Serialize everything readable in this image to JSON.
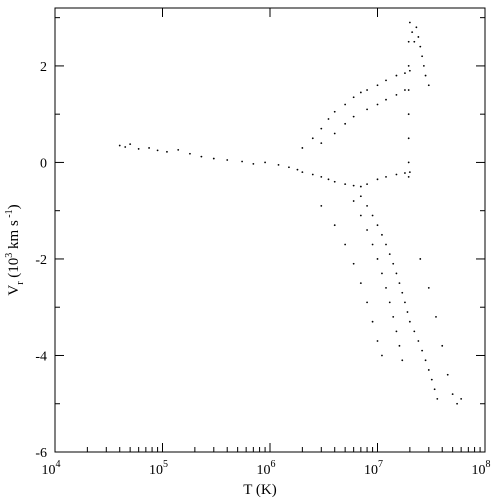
{
  "chart_data": {
    "type": "scatter",
    "title": "",
    "xlabel": "T (K)",
    "ylabel": "V_r (10^3 km s^-1)",
    "ylabel_parts": {
      "base": "V",
      "sub": "r",
      "open": "(10",
      "exp": "3",
      "unit": " km s",
      "unit_exp": "-1",
      "close": ")"
    },
    "x_scale": "log",
    "xlim": [
      10000,
      100000000
    ],
    "ylim": [
      -6,
      3.2
    ],
    "x_ticks": [
      {
        "value": 10000,
        "base": "10",
        "exp": "4"
      },
      {
        "value": 100000,
        "base": "10",
        "exp": "5"
      },
      {
        "value": 1000000,
        "base": "10",
        "exp": "6"
      },
      {
        "value": 10000000,
        "base": "10",
        "exp": "7"
      },
      {
        "value": 100000000,
        "base": "10",
        "exp": "8"
      }
    ],
    "y_ticks": [
      {
        "value": -6,
        "label": "-6"
      },
      {
        "value": -4,
        "label": "-4"
      },
      {
        "value": -2,
        "label": "-2"
      },
      {
        "value": 0,
        "label": "0"
      },
      {
        "value": 2,
        "label": "2"
      }
    ],
    "grid": false,
    "legend": "none",
    "marker_color": "#000000",
    "series": [
      {
        "points": [
          [
            40000,
            0.35
          ],
          [
            45000,
            0.32
          ],
          [
            50000,
            0.38
          ],
          [
            60000,
            0.28
          ],
          [
            75000,
            0.3
          ],
          [
            90000,
            0.25
          ],
          [
            110000,
            0.22
          ],
          [
            140000,
            0.26
          ],
          [
            180000,
            0.18
          ],
          [
            230000,
            0.12
          ],
          [
            300000,
            0.08
          ],
          [
            400000,
            0.05
          ],
          [
            550000,
            0.02
          ],
          [
            700000,
            -0.03
          ],
          [
            900000,
            0.0
          ],
          [
            1200000,
            -0.05
          ],
          [
            1500000,
            -0.1
          ],
          [
            1800000,
            -0.15
          ],
          [
            2000000,
            -0.2
          ],
          [
            2500000,
            -0.25
          ],
          [
            3000000,
            -0.3
          ],
          [
            3500000,
            -0.35
          ],
          [
            4000000,
            -0.4
          ],
          [
            5000000,
            -0.45
          ],
          [
            6000000,
            -0.48
          ],
          [
            7000000,
            -0.5
          ],
          [
            8000000,
            -0.45
          ],
          [
            10000000,
            -0.35
          ],
          [
            12000000,
            -0.3
          ],
          [
            15000000,
            -0.25
          ],
          [
            18000000,
            -0.22
          ],
          [
            20000000,
            -0.2
          ],
          [
            2000000,
            0.3
          ],
          [
            2500000,
            0.5
          ],
          [
            3000000,
            0.7
          ],
          [
            3500000,
            0.9
          ],
          [
            4000000,
            1.05
          ],
          [
            5000000,
            1.2
          ],
          [
            6000000,
            1.35
          ],
          [
            7000000,
            1.45
          ],
          [
            8000000,
            1.5
          ],
          [
            10000000,
            1.6
          ],
          [
            12000000,
            1.7
          ],
          [
            15000000,
            1.8
          ],
          [
            18000000,
            1.85
          ],
          [
            20000000,
            1.9
          ],
          [
            3000000,
            0.4
          ],
          [
            4000000,
            0.6
          ],
          [
            5000000,
            0.8
          ],
          [
            6000000,
            0.95
          ],
          [
            8000000,
            1.1
          ],
          [
            10000000,
            1.2
          ],
          [
            12000000,
            1.3
          ],
          [
            15000000,
            1.4
          ],
          [
            18000000,
            1.5
          ],
          [
            20000000,
            2.9
          ],
          [
            21000000,
            2.7
          ],
          [
            22000000,
            2.5
          ],
          [
            23000000,
            2.8
          ],
          [
            24000000,
            2.6
          ],
          [
            25000000,
            2.4
          ],
          [
            26000000,
            2.2
          ],
          [
            27000000,
            2.0
          ],
          [
            28000000,
            1.8
          ],
          [
            30000000,
            1.6
          ],
          [
            19500000,
            0.5
          ],
          [
            19500000,
            1.0
          ],
          [
            19500000,
            1.5
          ],
          [
            19500000,
            2.0
          ],
          [
            19500000,
            2.5
          ],
          [
            19500000,
            0.0
          ],
          [
            19500000,
            -0.3
          ],
          [
            7000000,
            -0.7
          ],
          [
            8000000,
            -0.9
          ],
          [
            9000000,
            -1.1
          ],
          [
            10000000,
            -1.3
          ],
          [
            11000000,
            -1.5
          ],
          [
            12000000,
            -1.7
          ],
          [
            13000000,
            -1.9
          ],
          [
            14000000,
            -2.1
          ],
          [
            15000000,
            -2.3
          ],
          [
            16000000,
            -2.5
          ],
          [
            17000000,
            -2.7
          ],
          [
            18000000,
            -2.9
          ],
          [
            19000000,
            -3.1
          ],
          [
            20000000,
            -3.3
          ],
          [
            22000000,
            -3.5
          ],
          [
            24000000,
            -3.7
          ],
          [
            26000000,
            -3.9
          ],
          [
            28000000,
            -4.1
          ],
          [
            30000000,
            -4.3
          ],
          [
            32000000,
            -4.5
          ],
          [
            34000000,
            -4.7
          ],
          [
            36000000,
            -4.9
          ],
          [
            6000000,
            -0.8
          ],
          [
            7000000,
            -1.1
          ],
          [
            8000000,
            -1.4
          ],
          [
            9000000,
            -1.7
          ],
          [
            10000000,
            -2.0
          ],
          [
            11000000,
            -2.3
          ],
          [
            12000000,
            -2.6
          ],
          [
            13000000,
            -2.9
          ],
          [
            14000000,
            -3.2
          ],
          [
            15000000,
            -3.5
          ],
          [
            16000000,
            -3.8
          ],
          [
            17000000,
            -4.1
          ],
          [
            3000000,
            -0.9
          ],
          [
            4000000,
            -1.3
          ],
          [
            5000000,
            -1.7
          ],
          [
            6000000,
            -2.1
          ],
          [
            7000000,
            -2.5
          ],
          [
            8000000,
            -2.9
          ],
          [
            9000000,
            -3.3
          ],
          [
            10000000,
            -3.7
          ],
          [
            11000000,
            -4.0
          ],
          [
            25000000,
            -2.0
          ],
          [
            30000000,
            -2.6
          ],
          [
            35000000,
            -3.2
          ],
          [
            40000000,
            -3.8
          ],
          [
            45000000,
            -4.4
          ],
          [
            50000000,
            -4.8
          ],
          [
            55000000,
            -5.0
          ],
          [
            60000000,
            -4.9
          ]
        ]
      }
    ]
  }
}
